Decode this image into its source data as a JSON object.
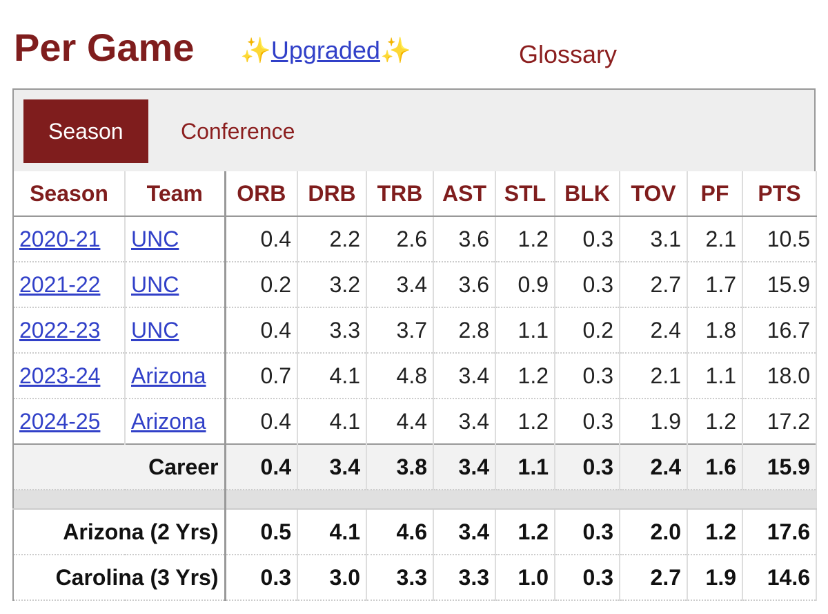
{
  "header": {
    "title": "Per Game",
    "sparkle": "✨",
    "link": "Upgraded",
    "glossary": "Glossary"
  },
  "tabs": [
    "Season",
    "Conference"
  ],
  "table": {
    "columns": [
      "Season",
      "Team",
      "ORB",
      "DRB",
      "TRB",
      "AST",
      "STL",
      "BLK",
      "TOV",
      "PF",
      "PTS"
    ],
    "rows": [
      [
        "2020-21",
        "UNC",
        "0.4",
        "2.2",
        "2.6",
        "3.6",
        "1.2",
        "0.3",
        "3.1",
        "2.1",
        "10.5"
      ],
      [
        "2021-22",
        "UNC",
        "0.2",
        "3.2",
        "3.4",
        "3.6",
        "0.9",
        "0.3",
        "2.7",
        "1.7",
        "15.9"
      ],
      [
        "2022-23",
        "UNC",
        "0.4",
        "3.3",
        "3.7",
        "2.8",
        "1.1",
        "0.2",
        "2.4",
        "1.8",
        "16.7"
      ],
      [
        "2023-24",
        "Arizona",
        "0.7",
        "4.1",
        "4.8",
        "3.4",
        "1.2",
        "0.3",
        "2.1",
        "1.1",
        "18.0"
      ],
      [
        "2024-25",
        "Arizona",
        "0.4",
        "4.1",
        "4.4",
        "3.4",
        "1.2",
        "0.3",
        "1.9",
        "1.2",
        "17.2"
      ]
    ],
    "career": {
      "label": "Career",
      "values": [
        "0.4",
        "3.4",
        "3.8",
        "3.4",
        "1.1",
        "0.3",
        "2.4",
        "1.6",
        "15.9"
      ]
    },
    "splits": [
      {
        "label": "Arizona (2 Yrs)",
        "values": [
          "0.5",
          "4.1",
          "4.6",
          "3.4",
          "1.2",
          "0.3",
          "2.0",
          "1.2",
          "17.6"
        ]
      },
      {
        "label": "Carolina (3 Yrs)",
        "values": [
          "0.3",
          "3.0",
          "3.3",
          "3.3",
          "1.0",
          "0.3",
          "2.7",
          "1.9",
          "14.6"
        ]
      }
    ]
  }
}
